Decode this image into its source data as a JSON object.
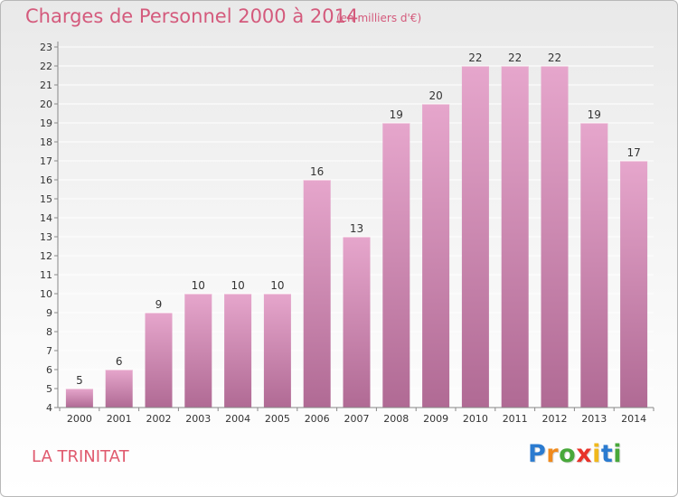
{
  "title": "Charges de Personnel 2000 à 2014",
  "subtitle": "(en milliers d'€)",
  "place": "LA TRINITAT",
  "logo": {
    "text": "Proxiti",
    "letters": [
      {
        "ch": "P",
        "color": "#2b7bd0"
      },
      {
        "ch": "r",
        "color": "#f08a1c"
      },
      {
        "ch": "o",
        "color": "#48a83a"
      },
      {
        "ch": "x",
        "color": "#e8332a"
      },
      {
        "ch": "i",
        "color": "#f0b81c"
      },
      {
        "ch": "t",
        "color": "#2b7bd0"
      },
      {
        "ch": "i",
        "color": "#48a83a"
      }
    ]
  },
  "chart_data": {
    "type": "bar",
    "title": "Charges de Personnel 2000 à 2014",
    "subtitle": "(en milliers d'€)",
    "categories": [
      "2000",
      "2001",
      "2002",
      "2003",
      "2004",
      "2005",
      "2006",
      "2007",
      "2008",
      "2009",
      "2010",
      "2011",
      "2012",
      "2013",
      "2014"
    ],
    "values": [
      5,
      6,
      9,
      10,
      10,
      10,
      16,
      13,
      19,
      20,
      22,
      22,
      22,
      19,
      17
    ],
    "ylim": [
      4,
      23
    ],
    "yticks": [
      4,
      5,
      6,
      7,
      8,
      9,
      10,
      11,
      12,
      13,
      14,
      15,
      16,
      17,
      18,
      19,
      20,
      21,
      22,
      23
    ],
    "grid": true,
    "colors": {
      "bar_top": "#e6a6cc",
      "bar_bottom": "#b06a94",
      "grid": "#ffffff",
      "axis": "#888888"
    }
  }
}
